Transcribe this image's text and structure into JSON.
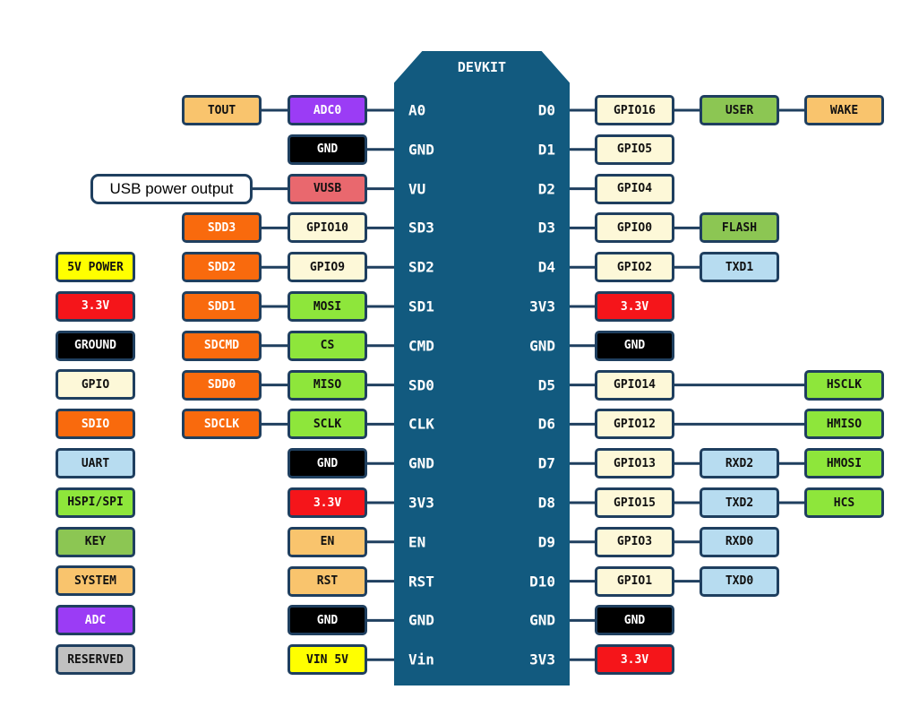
{
  "board_title": "DEVKIT",
  "types": {
    "system": {
      "bg": "#f9c46d",
      "fg": "#111111"
    },
    "adc": {
      "bg": "#9b3cf5",
      "fg": "#ffffff"
    },
    "ground": {
      "bg": "#000000",
      "fg": "#ffffff"
    },
    "vusb": {
      "bg": "#e9686e",
      "fg": "#111111"
    },
    "gpio": {
      "bg": "#fdf8d8",
      "fg": "#111111"
    },
    "sdio": {
      "bg": "#f96a0d",
      "fg": "#ffffff"
    },
    "spi": {
      "bg": "#8ee63b",
      "fg": "#111111"
    },
    "key": {
      "bg": "#8cc653",
      "fg": "#111111"
    },
    "uart": {
      "bg": "#b7dcf0",
      "fg": "#111111"
    },
    "v33": {
      "bg": "#f5151a",
      "fg": "#ffffff"
    },
    "v5": {
      "bg": "#ffff00",
      "fg": "#111111"
    },
    "reserved": {
      "bg": "#c0c0c0",
      "fg": "#111111"
    }
  },
  "rows": [
    {
      "left_pin": "A0",
      "right_pin": "D0",
      "left": [
        {
          "t": "TOUT",
          "k": "system"
        },
        {
          "t": "ADC0",
          "k": "adc"
        }
      ],
      "right": [
        {
          "t": "GPIO16",
          "k": "gpio"
        },
        {
          "t": "USER",
          "k": "key"
        },
        {
          "t": "WAKE",
          "k": "system"
        }
      ]
    },
    {
      "left_pin": "GND",
      "right_pin": "D1",
      "left": [
        null,
        {
          "t": "GND",
          "k": "ground"
        }
      ],
      "right": [
        {
          "t": "GPIO5",
          "k": "gpio"
        }
      ]
    },
    {
      "left_pin": "VU",
      "right_pin": "D2",
      "note": "USB power output",
      "left": [
        null,
        {
          "t": "VUSB",
          "k": "vusb"
        }
      ],
      "right": [
        {
          "t": "GPIO4",
          "k": "gpio"
        }
      ]
    },
    {
      "left_pin": "SD3",
      "right_pin": "D3",
      "left": [
        {
          "t": "SDD3",
          "k": "sdio"
        },
        {
          "t": "GPIO10",
          "k": "gpio"
        }
      ],
      "right": [
        {
          "t": "GPIO0",
          "k": "gpio"
        },
        {
          "t": "FLASH",
          "k": "key"
        }
      ]
    },
    {
      "left_pin": "SD2",
      "right_pin": "D4",
      "left": [
        {
          "t": "SDD2",
          "k": "sdio"
        },
        {
          "t": "GPIO9",
          "k": "gpio"
        }
      ],
      "right": [
        {
          "t": "GPIO2",
          "k": "gpio"
        },
        {
          "t": "TXD1",
          "k": "uart"
        }
      ]
    },
    {
      "left_pin": "SD1",
      "right_pin": "3V3",
      "left": [
        {
          "t": "SDD1",
          "k": "sdio"
        },
        {
          "t": "MOSI",
          "k": "spi"
        }
      ],
      "right": [
        {
          "t": "3.3V",
          "k": "v33"
        }
      ]
    },
    {
      "left_pin": "CMD",
      "right_pin": "GND",
      "left": [
        {
          "t": "SDCMD",
          "k": "sdio"
        },
        {
          "t": "CS",
          "k": "spi"
        }
      ],
      "right": [
        {
          "t": "GND",
          "k": "ground"
        }
      ]
    },
    {
      "left_pin": "SD0",
      "right_pin": "D5",
      "left": [
        {
          "t": "SDD0",
          "k": "sdio"
        },
        {
          "t": "MISO",
          "k": "spi"
        }
      ],
      "right": [
        {
          "t": "GPIO14",
          "k": "gpio"
        },
        null,
        {
          "t": "HSCLK",
          "k": "spi"
        }
      ]
    },
    {
      "left_pin": "CLK",
      "right_pin": "D6",
      "left": [
        {
          "t": "SDCLK",
          "k": "sdio"
        },
        {
          "t": "SCLK",
          "k": "spi"
        }
      ],
      "right": [
        {
          "t": "GPIO12",
          "k": "gpio"
        },
        null,
        {
          "t": "HMISO",
          "k": "spi"
        }
      ]
    },
    {
      "left_pin": "GND",
      "right_pin": "D7",
      "left": [
        null,
        {
          "t": "GND",
          "k": "ground"
        }
      ],
      "right": [
        {
          "t": "GPIO13",
          "k": "gpio"
        },
        {
          "t": "RXD2",
          "k": "uart"
        },
        {
          "t": "HMOSI",
          "k": "spi"
        }
      ]
    },
    {
      "left_pin": "3V3",
      "right_pin": "D8",
      "left": [
        null,
        {
          "t": "3.3V",
          "k": "v33"
        }
      ],
      "right": [
        {
          "t": "GPIO15",
          "k": "gpio"
        },
        {
          "t": "TXD2",
          "k": "uart"
        },
        {
          "t": "HCS",
          "k": "spi"
        }
      ]
    },
    {
      "left_pin": "EN",
      "right_pin": "D9",
      "left": [
        null,
        {
          "t": "EN",
          "k": "system"
        }
      ],
      "right": [
        {
          "t": "GPIO3",
          "k": "gpio"
        },
        {
          "t": "RXD0",
          "k": "uart"
        }
      ]
    },
    {
      "left_pin": "RST",
      "right_pin": "D10",
      "left": [
        null,
        {
          "t": "RST",
          "k": "system"
        }
      ],
      "right": [
        {
          "t": "GPIO1",
          "k": "gpio"
        },
        {
          "t": "TXD0",
          "k": "uart"
        }
      ]
    },
    {
      "left_pin": "GND",
      "right_pin": "GND",
      "left": [
        null,
        {
          "t": "GND",
          "k": "ground"
        }
      ],
      "right": [
        {
          "t": "GND",
          "k": "ground"
        }
      ]
    },
    {
      "left_pin": "Vin",
      "right_pin": "3V3",
      "left": [
        null,
        {
          "t": "VIN 5V",
          "k": "v5"
        }
      ],
      "right": [
        {
          "t": "3.3V",
          "k": "v33"
        }
      ]
    }
  ],
  "legend": [
    {
      "t": "5V POWER",
      "k": "v5"
    },
    {
      "t": "3.3V",
      "k": "v33"
    },
    {
      "t": "GROUND",
      "k": "ground"
    },
    {
      "t": "GPIO",
      "k": "gpio"
    },
    {
      "t": "SDIO",
      "k": "sdio"
    },
    {
      "t": "UART",
      "k": "uart"
    },
    {
      "t": "HSPI/SPI",
      "k": "spi"
    },
    {
      "t": "KEY",
      "k": "key"
    },
    {
      "t": "SYSTEM",
      "k": "system"
    },
    {
      "t": "ADC",
      "k": "adc"
    },
    {
      "t": "RESERVED",
      "k": "reserved"
    }
  ]
}
